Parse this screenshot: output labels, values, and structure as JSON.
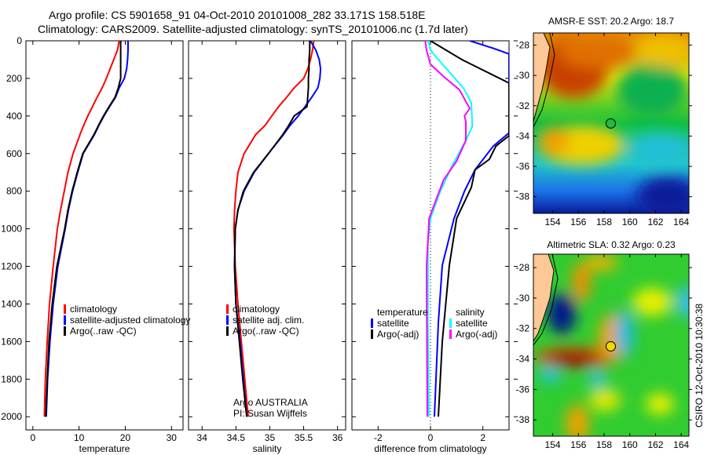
{
  "title": {
    "line1": "Argo profile: CS 5901658_91 04-Oct-2010 20101008_282 33.171S 158.518E",
    "line2": "Climatology: CARS2009. Satellite-adjusted climatology: synTS_20101006.nc (1.7d later)"
  },
  "chart_data": [
    {
      "id": "temperature",
      "type": "line",
      "xlabel": "temperature",
      "ylabel": "",
      "xlim": [
        -1.5,
        32.5
      ],
      "ylim": [
        2070,
        0
      ],
      "xticks": [
        0,
        10,
        20,
        30
      ],
      "yticks": [
        0,
        200,
        400,
        600,
        800,
        1000,
        1200,
        1400,
        1600,
        1800,
        2000
      ],
      "depth": [
        0,
        50,
        100,
        150,
        200,
        250,
        300,
        350,
        400,
        450,
        500,
        600,
        700,
        800,
        900,
        1000,
        1200,
        1400,
        1600,
        1800,
        2000
      ],
      "series": [
        {
          "name": "climatology",
          "color": "#ff0000",
          "values": [
            18.7,
            18.3,
            17.5,
            16.7,
            15.9,
            15.0,
            13.9,
            12.9,
            11.9,
            11.0,
            10.2,
            8.7,
            7.6,
            6.8,
            6.0,
            5.3,
            4.4,
            3.6,
            3.1,
            2.7,
            2.5
          ]
        },
        {
          "name": "satellite-adjusted climatology",
          "color": "#0000ff",
          "values": [
            20.6,
            20.6,
            20.5,
            20.3,
            19.8,
            18.7,
            17.9,
            16.6,
            15.4,
            14.3,
            13.3,
            10.9,
            9.7,
            8.6,
            7.7,
            7.0,
            5.4,
            4.4,
            3.7,
            3.2,
            2.9
          ]
        },
        {
          "name": "Argo(..raw -QC)",
          "color": "#000000",
          "values": [
            19.0,
            19.0,
            19.0,
            19.0,
            19.0,
            18.5,
            17.8,
            16.5,
            15.3,
            14.2,
            13.2,
            10.8,
            9.6,
            8.5,
            7.6,
            6.9,
            5.2,
            4.2,
            3.5,
            3.1,
            2.8
          ]
        }
      ]
    },
    {
      "id": "salinity",
      "type": "line",
      "xlabel": "salinity",
      "ylabel": "",
      "xlim": [
        33.8,
        36.12
      ],
      "ylim": [
        2070,
        0
      ],
      "xticks": [
        34,
        34.5,
        35,
        35.5,
        36
      ],
      "yticks": [
        0,
        200,
        400,
        600,
        800,
        1000,
        1200,
        1400,
        1600,
        1800,
        2000
      ],
      "depth": [
        0,
        50,
        100,
        150,
        200,
        250,
        300,
        350,
        400,
        450,
        500,
        600,
        700,
        800,
        900,
        1000,
        1200,
        1400,
        1600,
        1800,
        2000
      ],
      "series": [
        {
          "name": "climatology",
          "color": "#ff0000",
          "values": [
            35.65,
            35.63,
            35.6,
            35.56,
            35.5,
            35.36,
            35.25,
            35.13,
            35.03,
            34.93,
            34.79,
            34.62,
            34.53,
            34.5,
            34.48,
            34.47,
            34.49,
            34.53,
            34.58,
            34.63,
            34.68
          ]
        },
        {
          "name": "satellite adj. clim.",
          "color": "#0000ff",
          "values": [
            35.6,
            35.68,
            35.73,
            35.75,
            35.74,
            35.71,
            35.62,
            35.52,
            35.42,
            35.3,
            35.2,
            34.98,
            34.77,
            34.62,
            34.53,
            34.49,
            34.48,
            34.5,
            34.56,
            34.61,
            34.66
          ]
        },
        {
          "name": "Argo(..raw -QC)",
          "color": "#000000",
          "values": [
            35.59,
            35.59,
            35.58,
            35.58,
            35.57,
            35.57,
            35.56,
            35.55,
            35.36,
            35.28,
            35.19,
            34.98,
            34.76,
            34.61,
            34.53,
            34.49,
            34.48,
            34.5,
            34.55,
            34.6,
            34.66
          ]
        }
      ],
      "annotation": [
        "Argo AUSTRALIA",
        "PI: Susan Wijffels"
      ]
    },
    {
      "id": "difference",
      "type": "line",
      "xlabel": "difference from climatology",
      "ylabel": "",
      "xlim": [
        -3,
        3
      ],
      "ylim": [
        2070,
        0
      ],
      "xticks": [
        -2,
        0,
        2
      ],
      "yticks": [
        0,
        200,
        400,
        600,
        800,
        1000,
        1200,
        1400,
        1600,
        1800,
        2000
      ],
      "legend_headers": [
        "temperature",
        "salinity"
      ],
      "series": [
        {
          "name": "satellite",
          "group": "temperature",
          "color": "#0000ff",
          "depth": [
            0,
            40,
            70,
            490,
            560,
            686,
            800,
            945,
            1195,
            1500,
            2000
          ],
          "values": [
            1.5,
            2.4,
            3.0,
            3.0,
            2.4,
            1.7,
            1.3,
            0.9,
            0.45,
            0.3,
            0.15
          ]
        },
        {
          "name": "Argo(-adj)",
          "group": "temperature",
          "color": "#000000",
          "depth": [
            0,
            100,
            225,
            505,
            560,
            630,
            686,
            780,
            945,
            1195,
            1600,
            2000
          ],
          "values": [
            0.0,
            1.2,
            3.0,
            3.0,
            2.5,
            2.25,
            1.7,
            1.56,
            1.0,
            0.72,
            0.45,
            0.3
          ]
        },
        {
          "name": "satellite",
          "group": "salinity",
          "color": "#00ffff",
          "depth": [
            0,
            50,
            100,
            194,
            260,
            330,
            455,
            530,
            670,
            805,
            945,
            1080,
            1500,
            2000
          ],
          "values": [
            -0.09,
            0.0,
            0.3,
            0.9,
            1.3,
            1.56,
            1.6,
            1.35,
            0.81,
            0.36,
            0.0,
            -0.1,
            -0.1,
            -0.06
          ]
        },
        {
          "name": "Argo(-adj)",
          "group": "salinity",
          "color": "#ff00ff",
          "depth": [
            0,
            50,
            125,
            190,
            260,
            360,
            400,
            430,
            530,
            640,
            740,
            850,
            945,
            1200,
            2000
          ],
          "values": [
            -0.2,
            -0.15,
            0.0,
            0.5,
            1.1,
            1.5,
            1.3,
            1.35,
            1.35,
            1.0,
            0.5,
            0.2,
            -0.05,
            -0.15,
            -0.12
          ]
        }
      ]
    },
    {
      "id": "sst-map",
      "type": "heatmap",
      "title": "AMSR-E SST: 20.2 Argo: 18.7",
      "xticks": [
        154,
        156,
        158,
        160,
        162,
        164
      ],
      "yticks": [
        -28,
        -30,
        -32,
        -34,
        -36,
        -38
      ],
      "argo_position": {
        "lon": 158.518,
        "lat": -33.171
      },
      "marker_color": "#22bb44"
    },
    {
      "id": "sla-map",
      "type": "heatmap",
      "title": "Altimetric SLA: 0.32 Argo: 0.23",
      "xticks": [
        154,
        156,
        158,
        160,
        162,
        164
      ],
      "yticks": [
        -28,
        -30,
        -32,
        -34,
        -36,
        -38
      ],
      "argo_position": {
        "lon": 158.518,
        "lat": -33.171
      },
      "marker_color": "#f0d800"
    }
  ],
  "footer": "CSIRO 12-Oct-2010 10:30:38"
}
